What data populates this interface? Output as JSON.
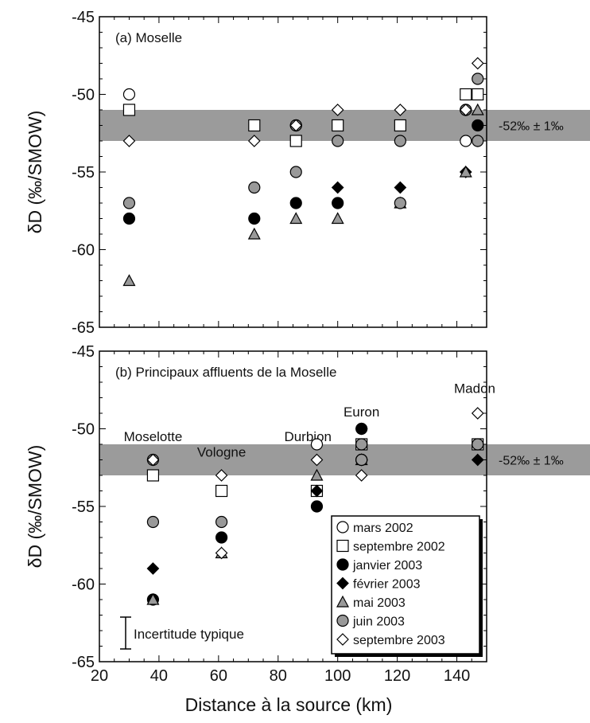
{
  "figure": {
    "x_axis_label": "Distance à la source (km)",
    "legend_items": [
      {
        "label": "mars 2002",
        "marker": "circle",
        "fill": "#ffffff"
      },
      {
        "label": "septembre 2002",
        "marker": "square",
        "fill": "#ffffff"
      },
      {
        "label": "janvier 2003",
        "marker": "circle",
        "fill": "#000000"
      },
      {
        "label": "février 2003",
        "marker": "diamond",
        "fill": "#000000"
      },
      {
        "label": "mai 2003",
        "marker": "triangle",
        "fill": "#999999"
      },
      {
        "label": "juin 2003",
        "marker": "circle",
        "fill": "#999999"
      },
      {
        "label": "septembre 2003",
        "marker": "diamond",
        "fill": "#ffffff"
      }
    ],
    "uncertainty_label": "Incertitude typique",
    "colors": {
      "band": "#9b9b9b",
      "gray_marker": "#999999",
      "black": "#000000",
      "white": "#ffffff"
    }
  },
  "chart_data": [
    {
      "type": "scatter",
      "panel_label": "(a)  Moselle",
      "ylabel": "δD (‰/SMOW)",
      "xlim": [
        20,
        150
      ],
      "ylim": [
        -65,
        -45
      ],
      "x_ticks": [
        20,
        40,
        60,
        80,
        100,
        120,
        140
      ],
      "y_ticks": [
        -45,
        -50,
        -55,
        -60,
        -65
      ],
      "band": {
        "y": [
          -53,
          -51
        ],
        "label": "-52‰ ± 1‰"
      },
      "series": [
        {
          "name": "mars 2002",
          "points": [
            [
              30,
              -50
            ],
            [
              86,
              -52
            ],
            [
              143,
              -53
            ],
            [
              143,
              -51
            ]
          ]
        },
        {
          "name": "septembre 2002",
          "points": [
            [
              30,
              -51
            ],
            [
              72,
              -52
            ],
            [
              86,
              -53
            ],
            [
              100,
              -52
            ],
            [
              121,
              -52
            ],
            [
              143,
              -50
            ],
            [
              147,
              -50
            ]
          ]
        },
        {
          "name": "janvier 2003",
          "points": [
            [
              30,
              -58
            ],
            [
              72,
              -58
            ],
            [
              86,
              -57
            ],
            [
              100,
              -57
            ],
            [
              147,
              -52
            ]
          ]
        },
        {
          "name": "février 2003",
          "points": [
            [
              100,
              -56
            ],
            [
              121,
              -56
            ],
            [
              143,
              -55
            ],
            [
              147,
              -53
            ]
          ]
        },
        {
          "name": "mai 2003",
          "points": [
            [
              30,
              -62
            ],
            [
              72,
              -59
            ],
            [
              86,
              -58
            ],
            [
              100,
              -58
            ],
            [
              121,
              -57
            ],
            [
              143,
              -55
            ],
            [
              147,
              -51
            ]
          ]
        },
        {
          "name": "juin 2003",
          "points": [
            [
              30,
              -57
            ],
            [
              72,
              -56
            ],
            [
              86,
              -55
            ],
            [
              86,
              -52
            ],
            [
              100,
              -53
            ],
            [
              121,
              -53
            ],
            [
              121,
              -57
            ],
            [
              143,
              -51
            ],
            [
              147,
              -49
            ],
            [
              147,
              -53
            ]
          ]
        },
        {
          "name": "septembre 2003",
          "points": [
            [
              30,
              -53
            ],
            [
              72,
              -53
            ],
            [
              86,
              -52
            ],
            [
              100,
              -51
            ],
            [
              121,
              -51
            ],
            [
              143,
              -51
            ],
            [
              147,
              -48
            ]
          ]
        }
      ],
      "annotations": []
    },
    {
      "type": "scatter",
      "panel_label": "(b)  Principaux affluents de la Moselle",
      "ylabel": "δD (‰/SMOW)",
      "xlim": [
        20,
        150
      ],
      "ylim": [
        -65,
        -45
      ],
      "x_ticks": [
        20,
        40,
        60,
        80,
        100,
        120,
        140
      ],
      "y_ticks": [
        -45,
        -50,
        -55,
        -60,
        -65
      ],
      "band": {
        "y": [
          -53,
          -51
        ],
        "label": "-52‰ ± 1‰"
      },
      "series": [
        {
          "name": "mars 2002",
          "points": [
            [
              93,
              -51
            ],
            [
              108,
              -52
            ]
          ]
        },
        {
          "name": "septembre 2002",
          "points": [
            [
              38,
              -53
            ],
            [
              61,
              -54
            ],
            [
              93,
              -54
            ],
            [
              108,
              -51
            ],
            [
              147,
              -51
            ]
          ]
        },
        {
          "name": "janvier 2003",
          "points": [
            [
              61,
              -57
            ],
            [
              93,
              -55
            ],
            [
              108,
              -50
            ],
            [
              108,
              -52
            ],
            [
              38,
              -61
            ]
          ]
        },
        {
          "name": "février 2003",
          "points": [
            [
              38,
              -59
            ],
            [
              93,
              -54
            ],
            [
              108,
              -50
            ],
            [
              108,
              -52
            ],
            [
              147,
              -52
            ]
          ]
        },
        {
          "name": "mai 2003",
          "points": [
            [
              38,
              -61
            ],
            [
              61,
              -58
            ],
            [
              93,
              -53
            ],
            [
              108,
              -52
            ]
          ]
        },
        {
          "name": "juin 2003",
          "points": [
            [
              38,
              -52
            ],
            [
              38,
              -56
            ],
            [
              61,
              -56
            ],
            [
              108,
              -51
            ],
            [
              108,
              -52
            ],
            [
              147,
              -51
            ]
          ]
        },
        {
          "name": "septembre 2003",
          "points": [
            [
              38,
              -52
            ],
            [
              61,
              -53
            ],
            [
              61,
              -58
            ],
            [
              93,
              -52
            ],
            [
              108,
              -53
            ],
            [
              147,
              -49
            ]
          ]
        }
      ],
      "annotations": [
        {
          "text": "Moselotte",
          "x": 38,
          "y": -50.8
        },
        {
          "text": "Vologne",
          "x": 61,
          "y": -51.8
        },
        {
          "text": "Durbion",
          "x": 90,
          "y": -50.8
        },
        {
          "text": "Euron",
          "x": 108,
          "y": -49.2
        },
        {
          "text": "Madon",
          "x": 146,
          "y": -47.7
        }
      ]
    }
  ]
}
